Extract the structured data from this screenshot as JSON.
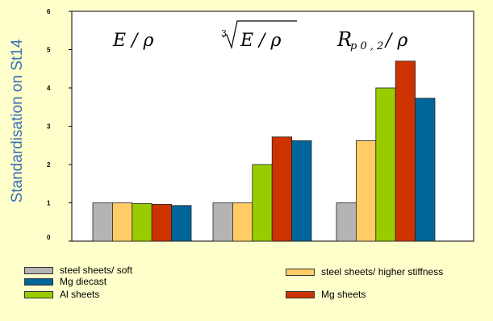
{
  "chart_data": {
    "type": "bar",
    "ylabel": "Standardisation on St14",
    "ylim": [
      0,
      6
    ],
    "yticks": [
      "0",
      "1",
      "2",
      "3",
      "4",
      "5",
      "6"
    ],
    "categories": [
      "E / ρ",
      "∛(E / ρ)",
      "Rp0,2 / ρ"
    ],
    "group_label_parts": {
      "g1": {
        "text": "E / ρ"
      },
      "g2": {
        "root_index": "3",
        "text": "E / ρ"
      },
      "g3": {
        "main": "R",
        "sub": "p 0 , 2",
        "rest": " / ρ"
      }
    },
    "series": [
      {
        "name": "steel sheets/ soft",
        "color": "#b4b4b4",
        "values": [
          1.0,
          1.0,
          1.0
        ]
      },
      {
        "name": "steel sheets/ higher stiffness",
        "color": "#ffcc66",
        "values": [
          1.0,
          1.0,
          2.62
        ]
      },
      {
        "name": "Al sheets",
        "color": "#99cc00",
        "values": [
          0.98,
          2.0,
          4.0
        ]
      },
      {
        "name": "Mg sheets",
        "color": "#cc3300",
        "values": [
          0.96,
          2.72,
          4.7
        ]
      },
      {
        "name": "Mg diecast",
        "color": "#006699",
        "values": [
          0.93,
          2.62,
          3.73
        ]
      }
    ],
    "legend_placement": "bottom",
    "grid": false
  }
}
